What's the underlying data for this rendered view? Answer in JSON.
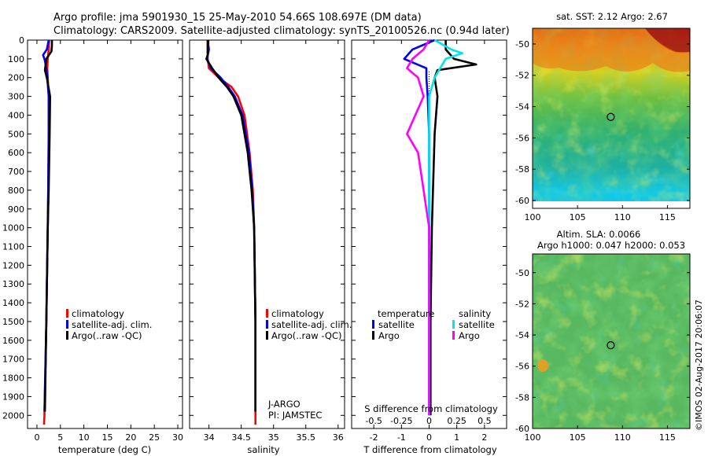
{
  "header": {
    "title_line1": "Argo profile: jma 5901930_15 25-May-2010 54.66S 108.697E (DM data)",
    "title_line2": "Climatology: CARS2009. Satellite-adjusted climatology: synTS_20100526.nc (0.94d later)"
  },
  "footer": {
    "stamp": "©IMOS 02-Aug-2017 20:06:07"
  },
  "chart_data": [
    {
      "type": "line",
      "name": "temperature_profile",
      "xlabel": "temperature (deg C)",
      "ylabel": "",
      "xlim": [
        -2,
        31
      ],
      "ylim": [
        2070,
        0
      ],
      "xticks": [
        0,
        5,
        10,
        15,
        20,
        25,
        30
      ],
      "yticks": [
        0,
        100,
        200,
        300,
        400,
        500,
        600,
        700,
        800,
        900,
        1000,
        1100,
        1200,
        1300,
        1400,
        1500,
        1600,
        1700,
        1800,
        1900,
        2000
      ],
      "legend": [
        "climatology",
        "satellite-adj. clim.",
        "Argo(..raw -QC)"
      ],
      "series": [
        {
          "name": "climatology",
          "color": "#ff0000",
          "depth": [
            0,
            50,
            100,
            150,
            200,
            300,
            500,
            800,
            1000,
            1500,
            2000,
            2050
          ],
          "values": [
            2.6,
            2.5,
            2.3,
            2.2,
            2.3,
            2.5,
            2.5,
            2.4,
            2.3,
            2.0,
            1.6,
            1.5
          ]
        },
        {
          "name": "satellite-adj. clim.",
          "color": "#0000ff",
          "depth": [
            0,
            50,
            80,
            100,
            150,
            200,
            300,
            500,
            800,
            1000,
            1500,
            1980
          ],
          "values": [
            2.5,
            2.1,
            1.3,
            1.6,
            2.0,
            2.2,
            2.5,
            2.5,
            2.4,
            2.3,
            2.0,
            1.6
          ]
        },
        {
          "name": "Argo(..raw -QC)",
          "color": "#000000",
          "depth": [
            0,
            30,
            60,
            100,
            160,
            200,
            300,
            500,
            800,
            1000,
            1500,
            1980
          ],
          "values": [
            3.2,
            3.2,
            3.1,
            2.0,
            1.7,
            2.1,
            2.8,
            2.7,
            2.5,
            2.3,
            2.0,
            1.7
          ]
        }
      ]
    },
    {
      "type": "line",
      "name": "salinity_profile",
      "xlabel": "salinity",
      "xlim": [
        33.7,
        36.1
      ],
      "ylim": [
        2070,
        0
      ],
      "xticks": [
        34,
        34.5,
        35,
        35.5,
        36
      ],
      "legend": [
        "climatology",
        "satellite-adj. clim.",
        "Argo(..raw -QC)"
      ],
      "annotations": [
        "J-ARGO",
        "PI: JAMSTEC"
      ],
      "series": [
        {
          "name": "climatology",
          "color": "#ff0000",
          "depth": [
            0,
            100,
            150,
            200,
            250,
            300,
            400,
            600,
            800,
            1000,
            1500,
            2050
          ],
          "values": [
            33.98,
            33.98,
            34.0,
            34.15,
            34.35,
            34.45,
            34.55,
            34.63,
            34.68,
            34.7,
            34.72,
            34.72
          ]
        },
        {
          "name": "satellite-adj. clim.",
          "color": "#0000ff",
          "depth": [
            0,
            50,
            100,
            150,
            200,
            250,
            300,
            400,
            600,
            800,
            1000,
            1500,
            1980
          ],
          "values": [
            33.98,
            34.0,
            33.97,
            34.03,
            34.18,
            34.3,
            34.4,
            34.52,
            34.62,
            34.67,
            34.7,
            34.72,
            34.72
          ]
        },
        {
          "name": "Argo(..raw -QC)",
          "color": "#000000",
          "depth": [
            0,
            80,
            100,
            150,
            200,
            250,
            300,
            400,
            600,
            800,
            1000,
            1500,
            1980
          ],
          "values": [
            33.98,
            33.98,
            33.96,
            34.05,
            34.15,
            34.28,
            34.38,
            34.5,
            34.6,
            34.66,
            34.7,
            34.72,
            34.72
          ]
        }
      ]
    },
    {
      "type": "line",
      "name": "difference_profile",
      "xlabel": "T difference from climatology",
      "x2label": "S difference from climatology",
      "xlim": [
        -2.8,
        2.8
      ],
      "ylim": [
        2070,
        0
      ],
      "xticks": [
        -2,
        -1,
        0,
        1,
        2
      ],
      "x2ticks": [
        -0.5,
        -0.25,
        0,
        0.25,
        0.5
      ],
      "legend_headers": [
        "temperature",
        "salinity"
      ],
      "legend": [
        "satellite",
        "Argo",
        "satellite",
        "Argo"
      ],
      "series": [
        {
          "name": "temperature satellite",
          "color": "#0000ff",
          "depth": [
            0,
            50,
            100,
            150,
            200,
            300,
            500,
            1000,
            1500,
            2000
          ],
          "values": [
            0.2,
            -0.6,
            -0.9,
            -0.1,
            -0.1,
            -0.05,
            0.0,
            0.0,
            0.0,
            0.0
          ]
        },
        {
          "name": "temperature Argo",
          "color": "#000000",
          "depth": [
            0,
            50,
            100,
            130,
            160,
            200,
            300,
            500,
            1000,
            1500,
            2000
          ],
          "values": [
            0.6,
            0.6,
            0.9,
            1.7,
            0.3,
            0.2,
            0.3,
            0.2,
            0.1,
            0.05,
            0.05
          ]
        },
        {
          "name": "salinity satellite",
          "color": "#00e5e5",
          "depth": [
            0,
            50,
            70,
            100,
            150,
            200,
            300,
            500,
            1000,
            2000
          ],
          "values": [
            0.05,
            0.2,
            0.3,
            0.15,
            0.1,
            0.05,
            0.0,
            0.0,
            0.0,
            0.0
          ]
        },
        {
          "name": "salinity Argo",
          "color": "#ff00ff",
          "depth": [
            0,
            50,
            100,
            150,
            200,
            300,
            500,
            600,
            1000,
            2000
          ],
          "values": [
            0.0,
            -0.05,
            -0.15,
            -0.2,
            -0.1,
            -0.05,
            -0.2,
            -0.1,
            0.0,
            0.0
          ]
        }
      ]
    },
    {
      "type": "heatmap",
      "name": "sst_map",
      "title": "sat. SST: 2.12 Argo: 2.67",
      "xlim": [
        100,
        117.5
      ],
      "ylim": [
        -60.5,
        -49
      ],
      "xticks": [
        100,
        105,
        110,
        115
      ],
      "yticks": [
        -50,
        -52,
        -54,
        -56,
        -58,
        -60
      ],
      "marker": {
        "lon": 108.697,
        "lat": -54.66
      }
    },
    {
      "type": "heatmap",
      "name": "sla_map",
      "title": "Altim. SLA: 0.0066",
      "subtitle": "Argo h1000: 0.047 h2000: 0.053",
      "xlim": [
        100,
        117.5
      ],
      "ylim": [
        -60,
        -48.8
      ],
      "xticks": [
        100,
        105,
        110,
        115
      ],
      "yticks": [
        -50,
        -52,
        -54,
        -56,
        -58,
        -60
      ],
      "marker": {
        "lon": 108.697,
        "lat": -54.66
      }
    }
  ]
}
